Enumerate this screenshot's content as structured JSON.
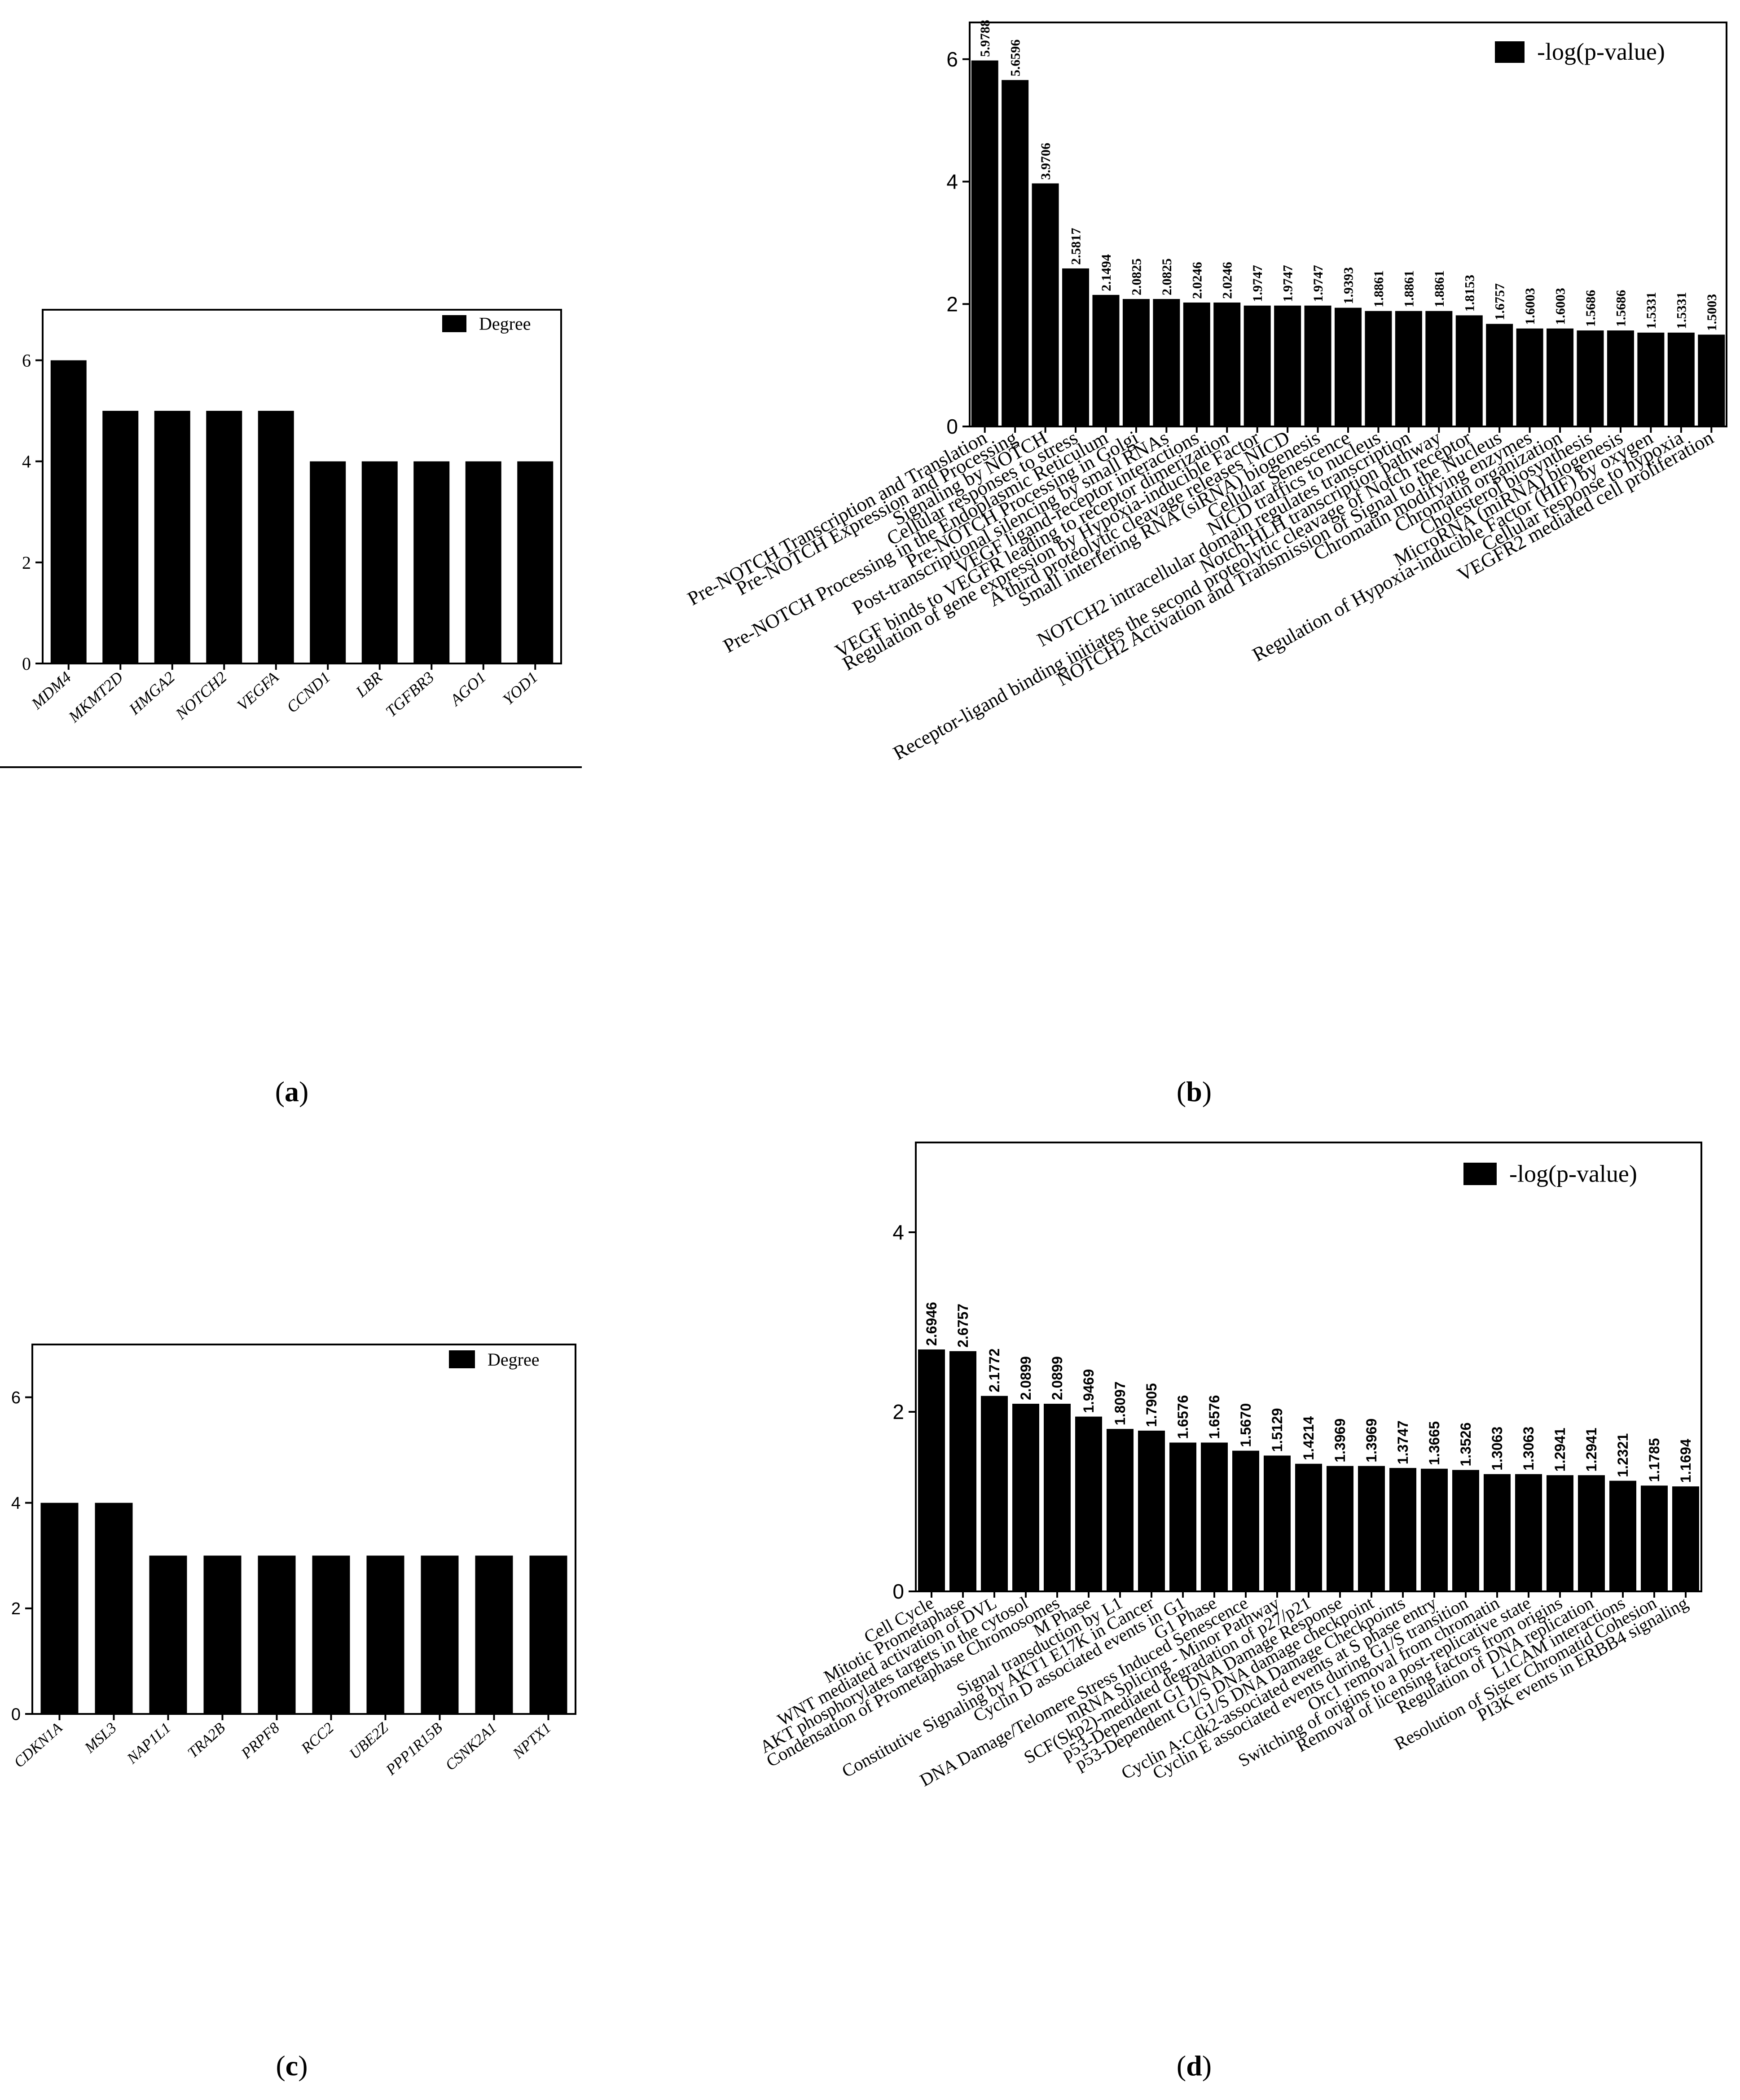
{
  "captions": {
    "a": "a",
    "b": "b",
    "c": "c",
    "d": "d"
  },
  "chart_data": [
    {
      "id": "a",
      "type": "bar",
      "legend": "Degree",
      "legend_position": "top-right",
      "ylim": [
        0,
        7
      ],
      "yticks": [
        0,
        2,
        4,
        6
      ],
      "categories": [
        "MDM4",
        "MKMT2D",
        "HMGA2",
        "NOTCH2",
        "VEGFA",
        "CCND1",
        "LBR",
        "TGFBR3",
        "AGO1",
        "YOD1"
      ],
      "values": [
        6,
        5,
        5,
        5,
        5,
        4,
        4,
        4,
        4,
        4
      ],
      "value_labels": []
    },
    {
      "id": "b",
      "type": "bar",
      "legend": "-log(p-value)",
      "legend_position": "top-right",
      "ylim": [
        0,
        6.6
      ],
      "yticks": [
        0,
        2,
        4,
        6
      ],
      "categories": [
        "Pre-NOTCH Transcription and Translation",
        "Pre-NOTCH Expression and Processing",
        "Signaling by NOTCH",
        "Cellular responses to stress",
        "Pre-NOTCH Processing in the Endoplasmic Reticulum",
        "Pre-NOTCH Processing in Golgi",
        "Post-transcriptional silencing by small RNAs",
        "VEGF ligand-receptor interactions",
        "VEGF binds to VEGFR leading to receptor dimerization",
        "Regulation of gene expression by Hypoxia-inducible Factor",
        "A third proteolytic cleavage releases NICD",
        "Small interfering RNA (siRNA) biogenesis",
        "Cellular Senescence",
        "NICD traffics to nucleus",
        "NOTCH2 intracellular domain regulates transcription",
        "Notch-HLH transcription pathway",
        "Receptor-ligand binding initiates the second proteolytic cleavage of Notch receptor",
        "NOTCH2 Activation and Transmission of Signal to the Nucleus",
        "Chromatin modifying enzymes",
        "Chromatin organization",
        "Cholesterol biosynthesis",
        "MicroRNA (miRNA) biogenesis",
        "Regulation of Hypoxia-inducible Factor (HIF) by oxygen",
        "Cellular response to hypoxia",
        "VEGFR2 mediated cell proliferation"
      ],
      "values": [
        5.9788,
        5.6596,
        3.9706,
        2.5817,
        2.1494,
        2.0825,
        2.0825,
        2.0246,
        2.0246,
        1.9747,
        1.9747,
        1.9747,
        1.9393,
        1.8861,
        1.8861,
        1.8861,
        1.8153,
        1.6757,
        1.6003,
        1.6003,
        1.5686,
        1.5686,
        1.5331,
        1.5331,
        1.5003
      ],
      "value_labels": [
        "5.9788",
        "5.6596",
        "3.9706",
        "2.5817",
        "2.1494",
        "2.0825",
        "2.0825",
        "2.0246",
        "2.0246",
        "1.9747",
        "1.9747",
        "1.9747",
        "1.9393",
        "1.8861",
        "1.8861",
        "1.8861",
        "1.8153",
        "1.6757",
        "1.6003",
        "1.6003",
        "1.5686",
        "1.5686",
        "1.5331",
        "1.5331",
        "1.5003"
      ]
    },
    {
      "id": "c",
      "type": "bar",
      "legend": "Degree",
      "legend_position": "top-right",
      "ylim": [
        0,
        7
      ],
      "yticks": [
        0,
        2,
        4,
        6
      ],
      "categories": [
        "CDKN1A",
        "MSL3",
        "NAP1L1",
        "TRA2B",
        "PRPF8",
        "RCC2",
        "UBE2Z",
        "PPP1R15B",
        "CSNK2A1",
        "NPTX1"
      ],
      "values": [
        4,
        4,
        3,
        3,
        3,
        3,
        3,
        3,
        3,
        3
      ],
      "value_labels": []
    },
    {
      "id": "d",
      "type": "bar",
      "legend": "-log(p-value)",
      "legend_position": "top-right",
      "ylim": [
        0,
        5
      ],
      "yticks": [
        0,
        2,
        4
      ],
      "categories": [
        "Cell Cycle",
        "Mitotic Prometaphase",
        "WNT mediated activation of DVL",
        "AKT phosphorylates targets in the cytosol",
        "Condensation of Prometaphase Chromosomes",
        "M Phase",
        "Signal transduction by L1",
        "Constitutive Signaling by AKT1 E17K in Cancer",
        "Cyclin D associated events in G1",
        "G1 Phase",
        "DNA Damage/Telomere Stress Induced Senescence",
        "mRNA Splicing - Minor Pathway",
        "SCF(Skp2)-mediated degradation of p27/p21",
        "p53-Dependent G1 DNA Damage Response",
        "p53-Dependent G1/S DNA damage checkpoint",
        "G1/S DNA Damage Checkpoints",
        "Cyclin A:Cdk2-associated events at S phase entry",
        "Cyclin E associated events during G1/S transition",
        "Orc1 removal from chromatin",
        "Switching of origins to a post-replicative state",
        "Removal of licensing factors from origins",
        "Regulation of DNA replication",
        "L1CAM interactions",
        "Resolution of Sister Chromatid Cohesion",
        "PI3K events in ERBB4 signaling"
      ],
      "values": [
        2.6946,
        2.6757,
        2.1772,
        2.0899,
        2.0899,
        1.9469,
        1.8097,
        1.7905,
        1.6576,
        1.6576,
        1.567,
        1.5129,
        1.4214,
        1.3969,
        1.3969,
        1.3747,
        1.3665,
        1.3526,
        1.3063,
        1.3063,
        1.2941,
        1.2941,
        1.2321,
        1.1785,
        1.1694
      ],
      "value_labels": [
        "2.6946",
        "2.6757",
        "2.1772",
        "2.0899",
        "2.0899",
        "1.9469",
        "1.8097",
        "1.7905",
        "1.6576",
        "1.6576",
        "1.5670",
        "1.5129",
        "1.4214",
        "1.3969",
        "1.3969",
        "1.3747",
        "1.3665",
        "1.3526",
        "1.3063",
        "1.3063",
        "1.2941",
        "1.2941",
        "1.2321",
        "1.1785",
        "1.1694"
      ]
    }
  ]
}
